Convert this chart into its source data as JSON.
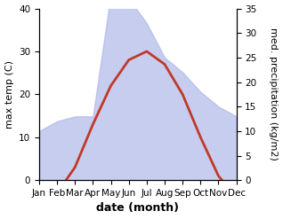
{
  "months": [
    "Jan",
    "Feb",
    "Mar",
    "Apr",
    "May",
    "Jun",
    "Jul",
    "Aug",
    "Sep",
    "Oct",
    "Nov",
    "Dec"
  ],
  "month_indices": [
    1,
    2,
    3,
    4,
    5,
    6,
    7,
    8,
    9,
    10,
    11,
    12
  ],
  "temp_max": [
    -5,
    -3,
    3,
    13,
    22,
    28,
    30,
    27,
    20,
    10,
    1,
    -4
  ],
  "precipitation": [
    10,
    12,
    13,
    13,
    38,
    37,
    32,
    25,
    22,
    18,
    15,
    13
  ],
  "temp_ylim": [
    0,
    40
  ],
  "precip_ylim": [
    0,
    35
  ],
  "temp_color": "#c0392b",
  "precip_fill_color": "#b0b8e8",
  "precip_fill_alpha": 0.7,
  "xlabel": "date (month)",
  "ylabel_left": "max temp (C)",
  "ylabel_right": "med. precipitation (kg/m2)",
  "xlabel_fontsize": 9,
  "ylabel_fontsize": 8,
  "tick_fontsize": 7.5,
  "background_color": "#ffffff",
  "temp_yticks": [
    0,
    10,
    20,
    30,
    40
  ],
  "precip_yticks": [
    0,
    5,
    10,
    15,
    20,
    25,
    30,
    35
  ],
  "linewidth": 2.0
}
